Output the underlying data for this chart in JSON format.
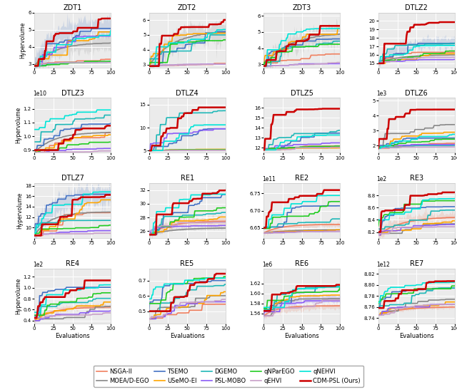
{
  "subplots": [
    {
      "title": "ZDT1",
      "sci_prefix": null,
      "ylim": [
        2.8,
        6.0
      ],
      "yticks": [
        3,
        4,
        5,
        6
      ],
      "xticks": [
        0,
        25,
        50,
        75,
        100
      ]
    },
    {
      "title": "ZDT2",
      "sci_prefix": null,
      "ylim": [
        2.8,
        6.5
      ],
      "yticks": [
        3,
        4,
        5,
        6
      ],
      "xticks": [
        0,
        25,
        50,
        75,
        100
      ]
    },
    {
      "title": "ZDT3",
      "sci_prefix": null,
      "ylim": [
        2.8,
        6.2
      ],
      "yticks": [
        3,
        4,
        5,
        6
      ],
      "xticks": [
        0,
        25,
        50,
        75,
        100
      ]
    },
    {
      "title": "DTLZ2",
      "sci_prefix": null,
      "ylim": [
        14.5,
        21.0
      ],
      "yticks": [
        15,
        16,
        17,
        18,
        19,
        20
      ],
      "xticks": [
        0,
        25,
        50,
        75,
        100
      ]
    },
    {
      "title": "DTLZ3",
      "sci_prefix": "1e10",
      "ylim": [
        0.88,
        1.28
      ],
      "yticks": [
        0.9,
        1.0,
        1.1,
        1.2
      ],
      "xticks": [
        0,
        25,
        50,
        75,
        100
      ]
    },
    {
      "title": "DTLZ4",
      "sci_prefix": null,
      "ylim": [
        4.5,
        16.5
      ],
      "yticks": [
        5,
        10,
        15
      ],
      "xticks": [
        0,
        25,
        50,
        75,
        100
      ]
    },
    {
      "title": "DTLZ5",
      "sci_prefix": null,
      "ylim": [
        11.5,
        17.0
      ],
      "yticks": [
        12,
        13,
        14,
        15,
        16
      ],
      "xticks": [
        0,
        25,
        50,
        75,
        100
      ]
    },
    {
      "title": "DTLZ6",
      "sci_prefix": "1e3",
      "ylim": [
        1.5,
        5.2
      ],
      "yticks": [
        2,
        3,
        4,
        5
      ],
      "xticks": [
        0,
        25,
        50,
        75,
        100
      ]
    },
    {
      "title": "DTLZ7",
      "sci_prefix": null,
      "ylim": [
        8.0,
        18.5
      ],
      "yticks": [
        10,
        12,
        14,
        16,
        18
      ],
      "xticks": [
        0,
        25,
        50,
        75,
        100
      ]
    },
    {
      "title": "RE1",
      "sci_prefix": null,
      "ylim": [
        25.0,
        33.0
      ],
      "yticks": [
        26,
        28,
        30,
        32
      ],
      "xticks": [
        0,
        25,
        50,
        75,
        100
      ]
    },
    {
      "title": "RE2",
      "sci_prefix": "1e11",
      "ylim": [
        6.62,
        6.78
      ],
      "yticks": [
        6.65,
        6.7,
        6.75
      ],
      "xticks": [
        0,
        25,
        50,
        75,
        100
      ]
    },
    {
      "title": "RE3",
      "sci_prefix": "1e2",
      "ylim": [
        8.1,
        9.0
      ],
      "yticks": [
        8.2,
        8.4,
        8.6,
        8.8
      ],
      "xticks": [
        0,
        25,
        50,
        75,
        100
      ]
    },
    {
      "title": "RE4",
      "sci_prefix": "1e2",
      "ylim": [
        0.35,
        1.35
      ],
      "yticks": [
        0.4,
        0.6,
        0.8,
        1.0,
        1.2
      ],
      "xticks": [
        0,
        25,
        50,
        75,
        100
      ]
    },
    {
      "title": "RE5",
      "sci_prefix": null,
      "ylim": [
        0.42,
        0.78
      ],
      "yticks": [
        0.5,
        0.6,
        0.7
      ],
      "xticks": [
        0,
        25,
        50,
        75,
        100
      ]
    },
    {
      "title": "RE6",
      "sci_prefix": "1e6",
      "ylim": [
        1.54,
        1.65
      ],
      "yticks": [
        1.56,
        1.58,
        1.6,
        1.62
      ],
      "xticks": [
        0,
        25,
        50,
        75,
        100
      ]
    },
    {
      "title": "RE7",
      "sci_prefix": "1e12",
      "ylim": [
        8.73,
        8.83
      ],
      "yticks": [
        8.74,
        8.76,
        8.78,
        8.8,
        8.82
      ],
      "xticks": [
        0,
        25,
        50,
        75,
        100
      ]
    }
  ],
  "algorithms": [
    {
      "name": "NSGA-II",
      "color": "#F08060",
      "lw": 1.2
    },
    {
      "name": "MOEA/D-EGO",
      "color": "#888888",
      "lw": 1.2
    },
    {
      "name": "TSEMO",
      "color": "#4472C4",
      "lw": 1.2
    },
    {
      "name": "USeMO-EI",
      "color": "#FFA500",
      "lw": 1.2
    },
    {
      "name": "DGEMO",
      "color": "#20B8B8",
      "lw": 1.2
    },
    {
      "name": "PSL-MOBO",
      "color": "#8B5CF6",
      "lw": 1.2
    },
    {
      "name": "qNParEGO",
      "color": "#22CC22",
      "lw": 1.2
    },
    {
      "name": "qEHVI",
      "color": "#C8A0C8",
      "lw": 1.2
    },
    {
      "name": "qNEHVI",
      "color": "#00E5D8",
      "lw": 1.2
    },
    {
      "name": "CDM-PSL (Ours)",
      "color": "#CC0000",
      "lw": 1.8
    }
  ],
  "n_eval": 100,
  "figsize": [
    6.4,
    5.5
  ],
  "dpi": 100,
  "bg_color": "#EBEBEB",
  "grid_color": "white"
}
